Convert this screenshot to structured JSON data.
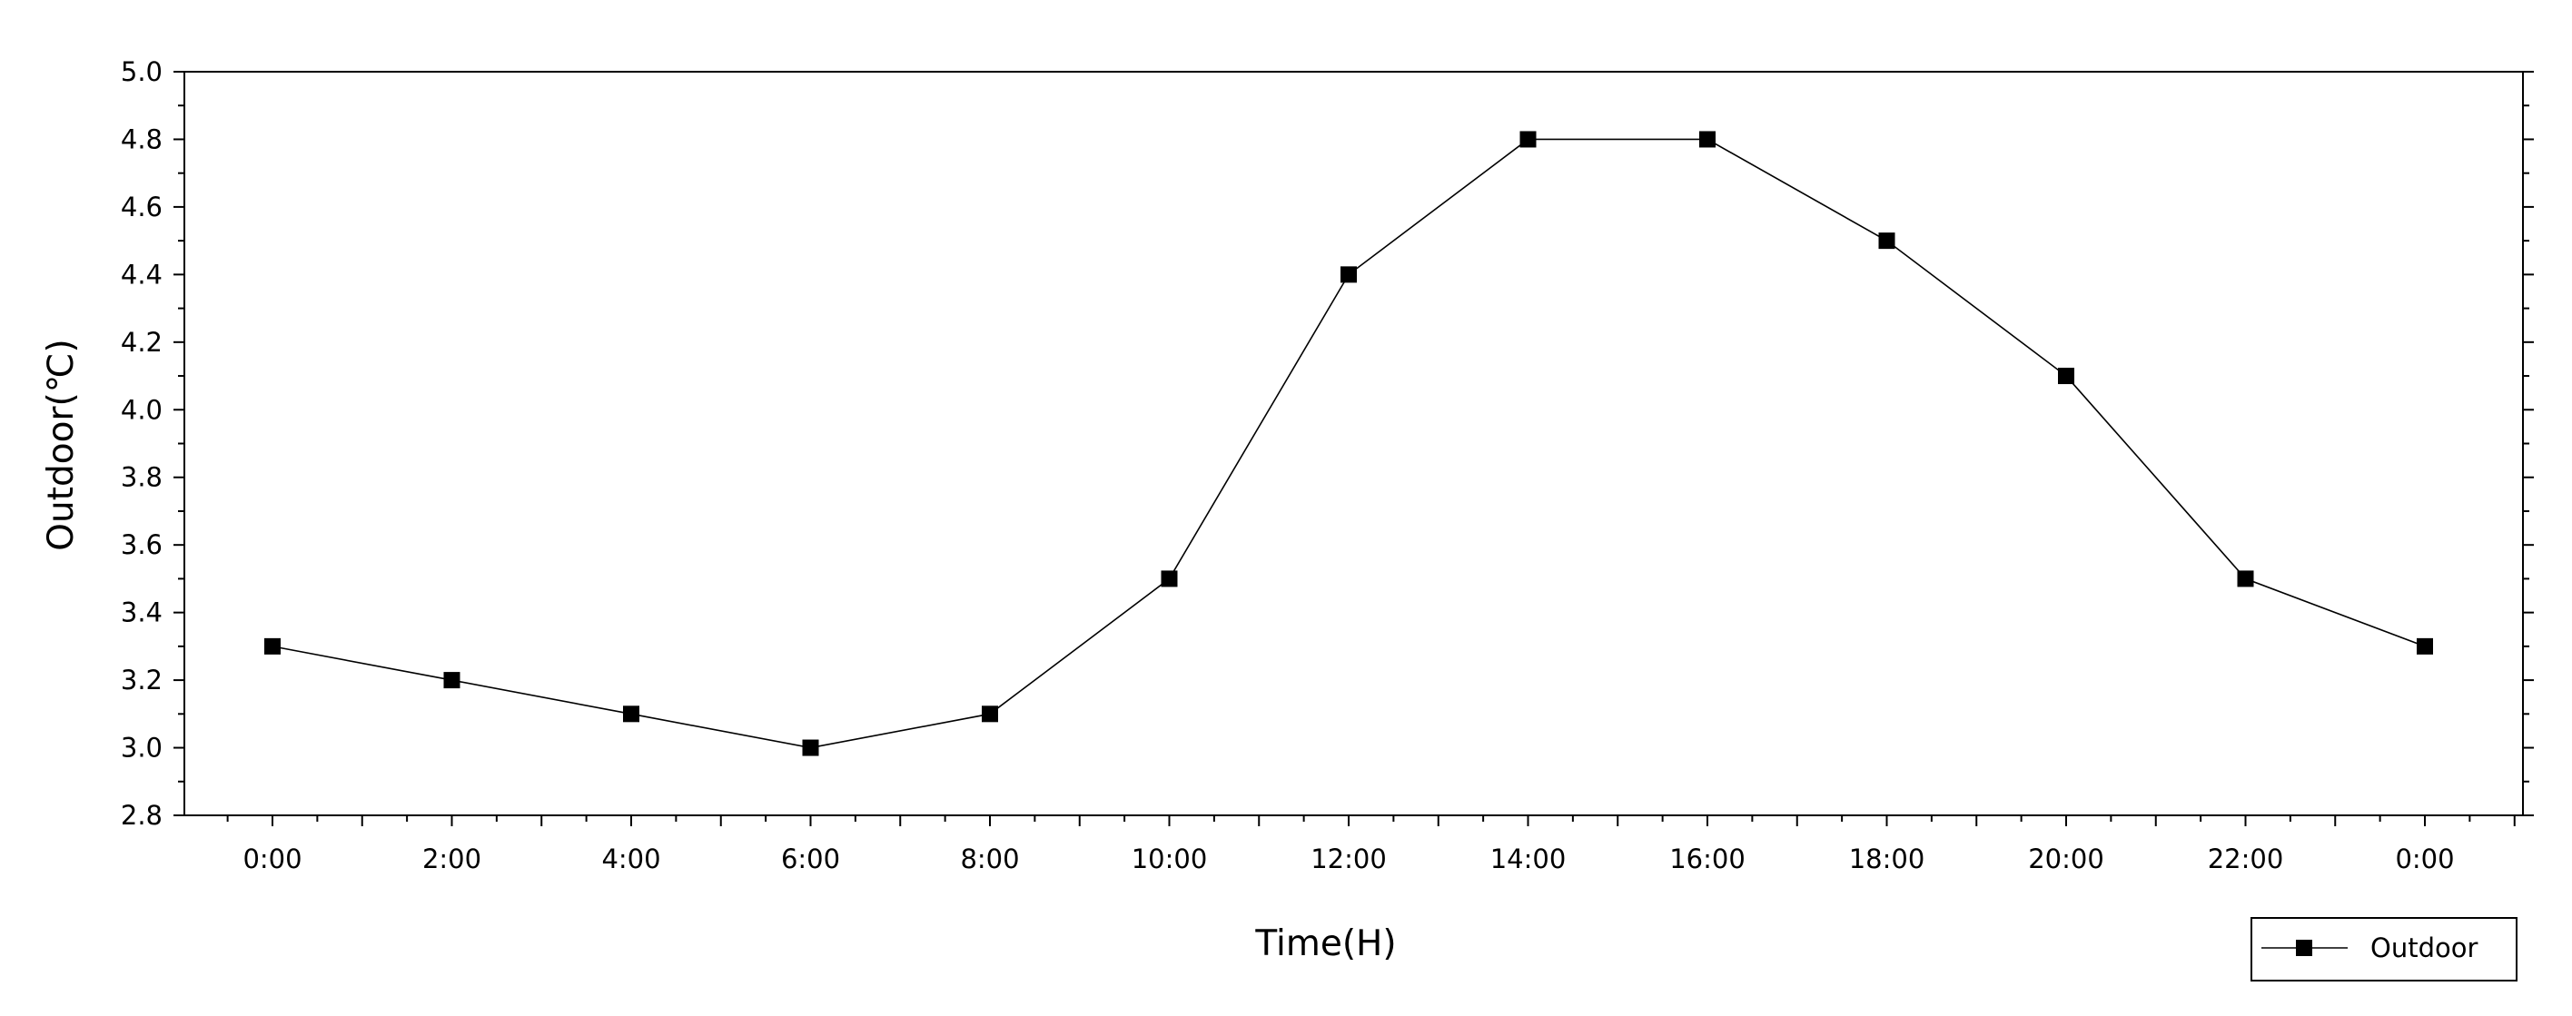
{
  "chart_data": {
    "type": "line",
    "title": "",
    "xlabel": "Time(H)",
    "ylabel": "Outdoor(℃)",
    "categories": [
      "0:00",
      "2:00",
      "4:00",
      "6:00",
      "8:00",
      "10:00",
      "12:00",
      "14:00",
      "16:00",
      "18:00",
      "20:00",
      "22:00",
      "0:00"
    ],
    "series": [
      {
        "name": "Outdoor",
        "values": [
          3.3,
          3.2,
          3.1,
          3.0,
          3.1,
          3.5,
          4.4,
          4.8,
          4.8,
          4.5,
          4.1,
          3.5,
          3.3
        ],
        "color": "#000000",
        "marker": "square"
      }
    ],
    "ylim": [
      2.8,
      5.0
    ],
    "yticks": [
      2.8,
      3.0,
      3.2,
      3.4,
      3.6,
      3.8,
      4.0,
      4.2,
      4.4,
      4.6,
      4.8,
      5.0
    ],
    "yticks_display": [
      "2.8",
      "3.0",
      "3.2",
      "3.4",
      "3.6",
      "3.8",
      "4.0",
      "4.2",
      "4.4",
      "4.6",
      "4.8",
      "5.0"
    ],
    "grid": false,
    "legend_position": "bottom-right"
  }
}
